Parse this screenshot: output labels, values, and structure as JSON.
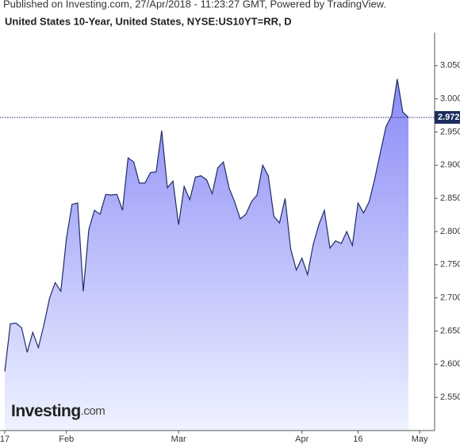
{
  "header": "Published on Investing.com, 27/Apr/2018 - 11:23:27 GMT, Powered by TradingView.",
  "chart_data": {
    "type": "area",
    "title": "United States 10-Year, United States, NYSE:US10YT=RR, D",
    "x": [
      "2018-01-17",
      "2018-01-18",
      "2018-01-19",
      "2018-01-22",
      "2018-01-23",
      "2018-01-24",
      "2018-01-25",
      "2018-01-26",
      "2018-01-29",
      "2018-01-30",
      "2018-01-31",
      "2018-02-01",
      "2018-02-02",
      "2018-02-05",
      "2018-02-06",
      "2018-02-07",
      "2018-02-08",
      "2018-02-09",
      "2018-02-12",
      "2018-02-13",
      "2018-02-14",
      "2018-02-15",
      "2018-02-16",
      "2018-02-19",
      "2018-02-20",
      "2018-02-21",
      "2018-02-22",
      "2018-02-23",
      "2018-02-26",
      "2018-02-27",
      "2018-02-28",
      "2018-03-01",
      "2018-03-02",
      "2018-03-05",
      "2018-03-06",
      "2018-03-07",
      "2018-03-08",
      "2018-03-09",
      "2018-03-12",
      "2018-03-13",
      "2018-03-14",
      "2018-03-15",
      "2018-03-16",
      "2018-03-19",
      "2018-03-20",
      "2018-03-21",
      "2018-03-22",
      "2018-03-23",
      "2018-03-26",
      "2018-03-27",
      "2018-03-28",
      "2018-03-29",
      "2018-03-30",
      "2018-04-02",
      "2018-04-03",
      "2018-04-04",
      "2018-04-05",
      "2018-04-06",
      "2018-04-09",
      "2018-04-10",
      "2018-04-11",
      "2018-04-12",
      "2018-04-13",
      "2018-04-16",
      "2018-04-17",
      "2018-04-18",
      "2018-04-19",
      "2018-04-20",
      "2018-04-23",
      "2018-04-24",
      "2018-04-25",
      "2018-04-26",
      "2018-04-27"
    ],
    "values": [
      2.589,
      2.661,
      2.662,
      2.655,
      2.618,
      2.648,
      2.625,
      2.66,
      2.7,
      2.723,
      2.71,
      2.79,
      2.841,
      2.843,
      2.71,
      2.803,
      2.832,
      2.826,
      2.856,
      2.855,
      2.856,
      2.832,
      2.911,
      2.905,
      2.873,
      2.873,
      2.889,
      2.89,
      2.952,
      2.866,
      2.876,
      2.81,
      2.868,
      2.848,
      2.882,
      2.884,
      2.878,
      2.857,
      2.896,
      2.905,
      2.866,
      2.845,
      2.819,
      2.826,
      2.845,
      2.855,
      2.9,
      2.884,
      2.823,
      2.813,
      2.85,
      2.774,
      2.742,
      2.76,
      2.735,
      2.78,
      2.81,
      2.832,
      2.775,
      2.786,
      2.782,
      2.8,
      2.779,
      2.843,
      2.828,
      2.845,
      2.88,
      2.92,
      2.958,
      2.975,
      3.03,
      2.98,
      2.972
    ],
    "color": "#1f2d63",
    "ylim": [
      2.5,
      3.1
    ],
    "yticks": [
      {
        "value": 2.55,
        "label": "2.550"
      },
      {
        "value": 2.6,
        "label": "2.600"
      },
      {
        "value": 2.65,
        "label": "2.650"
      },
      {
        "value": 2.7,
        "label": "2.700"
      },
      {
        "value": 2.75,
        "label": "2.750"
      },
      {
        "value": 2.8,
        "label": "2.800"
      },
      {
        "value": 2.85,
        "label": "2.850"
      },
      {
        "value": 2.9,
        "label": "2.900"
      },
      {
        "value": 2.95,
        "label": "2.950"
      },
      {
        "value": 3.0,
        "label": "3.000"
      },
      {
        "value": 3.05,
        "label": "3.050"
      }
    ],
    "xticks": [
      {
        "value": "2018-01-17",
        "label": "17"
      },
      {
        "value": "2018-02-01",
        "label": "Feb"
      },
      {
        "value": "2018-03-01",
        "label": "Mar"
      },
      {
        "value": "2018-04-02",
        "label": "Apr"
      },
      {
        "value": "2018-04-16",
        "label": "16"
      },
      {
        "value": "2018-05-01",
        "label": "May"
      }
    ],
    "price_line": {
      "value": 2.972,
      "label": "2.972"
    },
    "logo": "Investing",
    "logo_suffix": ".com"
  }
}
